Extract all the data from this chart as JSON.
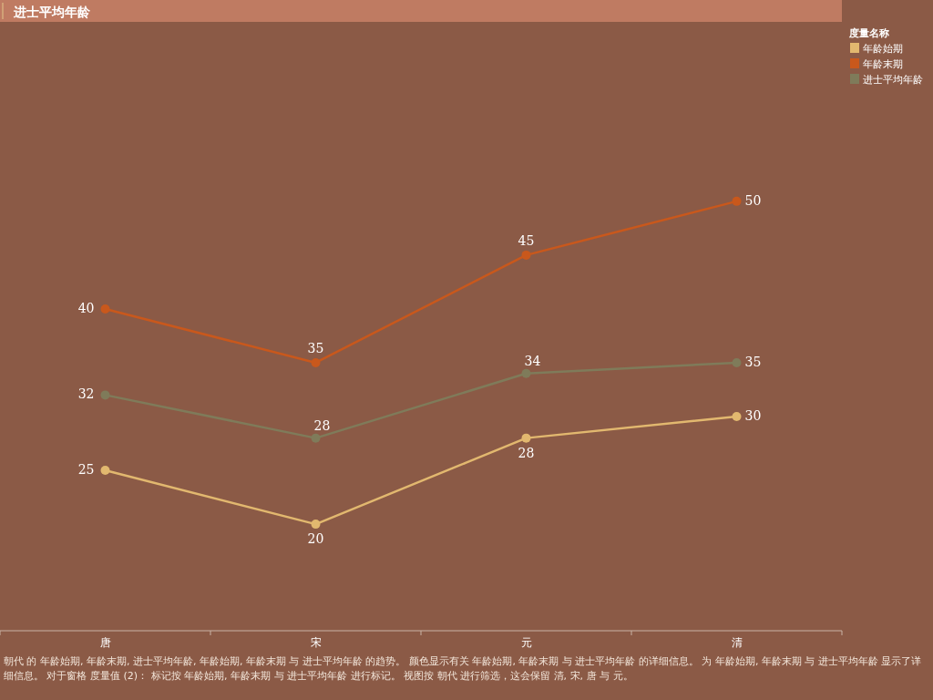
{
  "chart_data": {
    "type": "line",
    "title": "进士平均年龄",
    "categories": [
      "唐",
      "宋",
      "元",
      "清"
    ],
    "series": [
      {
        "name": "年龄始期",
        "color": "#e2b86f",
        "values": [
          25,
          20,
          28,
          30
        ]
      },
      {
        "name": "年龄末期",
        "color": "#c9581c",
        "values": [
          40,
          35,
          45,
          50
        ]
      },
      {
        "name": "进士平均年龄",
        "color": "#7f7b5a",
        "values": [
          32,
          28,
          34,
          35
        ]
      }
    ],
    "legend": "right",
    "legend_title": "度量名称",
    "marker": "circle",
    "data_labels": true,
    "annotations": [
      "朝代 的 年龄始期, 年龄末期, 进士平均年龄, 年龄始期, 年龄末期 与 进士平均年龄 的趋势。 颜色显示有关 年龄始期, 年龄末期 与 进士平均年龄 的详细信息。 为 年龄始期, 年龄末期 与 进士平均年龄 显示了详细信息。 对于窗格 度量值 (2)： 标记按 年龄始期, 年龄末期 与 进士平均年龄 进行标记。 视图按 朝代 进行筛选，这会保留 清, 宋, 唐 与 元。"
    ]
  }
}
